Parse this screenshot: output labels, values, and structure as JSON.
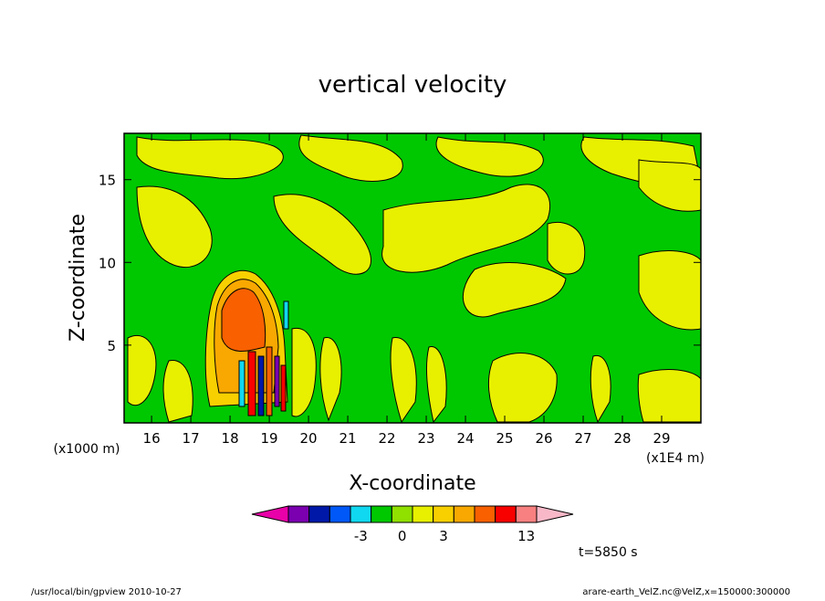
{
  "chart_data": {
    "type": "heatmap",
    "title": "vertical velocity",
    "xlabel": "X-coordinate",
    "ylabel": "Z-coordinate",
    "x_unit": "(x1E4 m)",
    "y_unit": "(x1000 m)",
    "xlim": [
      15.3,
      30.0
    ],
    "ylim": [
      0.3,
      17.8
    ],
    "x_ticks": [
      "16",
      "17",
      "18",
      "19",
      "20",
      "21",
      "22",
      "23",
      "24",
      "25",
      "26",
      "27",
      "28",
      "29"
    ],
    "y_ticks": [
      "5",
      "10",
      "15"
    ],
    "colorbar": {
      "colors": [
        "#e800a8",
        "#7a00b0",
        "#0018a8",
        "#0058f8",
        "#10d8f0",
        "#00c800",
        "#90e000",
        "#e8f000",
        "#f8d000",
        "#f8a800",
        "#f86000",
        "#f80000",
        "#f88080",
        "#f8b8c8"
      ],
      "labels": [
        "-3",
        "0",
        "3",
        "13"
      ]
    },
    "features": [
      {
        "name": "updraft core",
        "x": 18.1,
        "z": 7.0,
        "level": 3
      },
      {
        "name": "downdraft cells",
        "x": 18.5,
        "z": 2.5,
        "level": -3
      }
    ]
  },
  "annotations": {
    "time": "t=5850 s",
    "footer_left": "/usr/local/bin/gpview  2010-10-27",
    "footer_right": "arare-earth_VelZ.nc@VelZ,x=150000:300000"
  }
}
